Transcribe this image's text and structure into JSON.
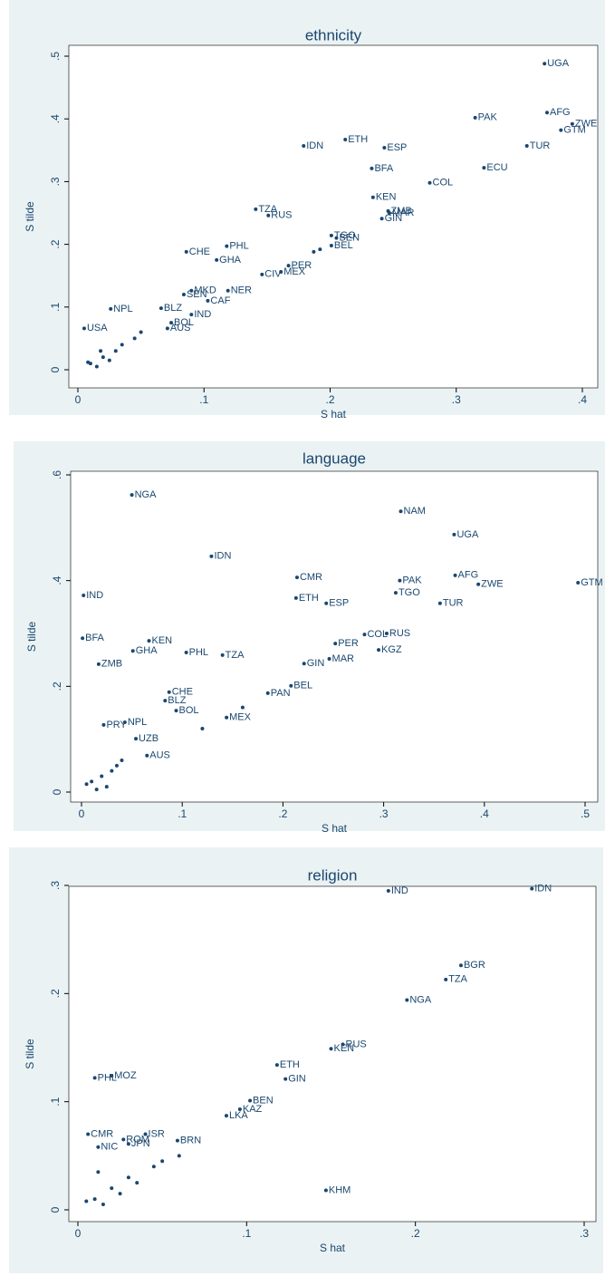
{
  "chart_data": [
    {
      "type": "scatter",
      "title": "ethnicity",
      "x_label": "S hat",
      "y_label": "S tilde",
      "color": "#1a476f",
      "xlim": [
        0,
        0.4
      ],
      "ylim": [
        0,
        0.5
      ],
      "xticks": [
        0,
        {
          "value": 0.1,
          "label": ".1"
        },
        {
          "value": 0.2,
          "label": ".2"
        },
        {
          "value": 0.3,
          "label": ".3"
        },
        {
          "value": 0.4,
          "label": ".4"
        }
      ],
      "yticks": [
        0,
        {
          "value": 0.1,
          "label": ".1"
        },
        {
          "value": 0.2,
          "label": ".2"
        },
        {
          "value": 0.3,
          "label": ".3"
        },
        {
          "value": 0.4,
          "label": ".4"
        },
        {
          "value": 0.5,
          "label": ".5"
        }
      ],
      "labels": [
        "UGA",
        "PAK",
        "AFG",
        "ZWE",
        "GTM",
        "TUR",
        "ECU",
        "IDN",
        "ETH",
        "ESP",
        "BFA",
        "COL",
        "KEN",
        "ZMB",
        "MAR",
        "GIN",
        "TZA",
        "RUS",
        "TGO",
        "BEN",
        "BEL",
        "CHE",
        "PHL",
        "GHA",
        "PER",
        "MEX",
        "CIV",
        "MKD",
        "NER",
        "SEN",
        "CAF",
        "BLZ",
        "IND",
        "NPL",
        "USA",
        "BOL",
        "AUS",
        null,
        null,
        null,
        null,
        null,
        null,
        null,
        null,
        null,
        null,
        null,
        null
      ],
      "x": [
        0.37,
        0.315,
        0.372,
        0.392,
        0.383,
        0.356,
        0.322,
        0.179,
        0.212,
        0.243,
        0.233,
        0.279,
        0.234,
        0.246,
        0.247,
        0.241,
        0.141,
        0.151,
        0.201,
        0.205,
        0.201,
        0.086,
        0.118,
        0.11,
        0.167,
        0.161,
        0.146,
        0.09,
        0.119,
        0.084,
        0.103,
        0.066,
        0.09,
        0.026,
        0.005,
        0.074,
        0.071,
        0.187,
        0.192,
        0.045,
        0.03,
        0.02,
        0.01,
        0.015,
        0.025,
        0.035,
        0.008,
        0.018,
        0.05
      ],
      "values": [
        0.488,
        0.402,
        0.41,
        0.392,
        0.382,
        0.357,
        0.322,
        0.357,
        0.367,
        0.354,
        0.321,
        0.298,
        0.275,
        0.253,
        0.25,
        0.241,
        0.256,
        0.246,
        0.214,
        0.21,
        0.198,
        0.188,
        0.197,
        0.175,
        0.166,
        0.156,
        0.152,
        0.126,
        0.126,
        0.12,
        0.11,
        0.098,
        0.088,
        0.097,
        0.066,
        0.075,
        0.066,
        0.188,
        0.192,
        0.05,
        0.03,
        0.02,
        0.01,
        0.005,
        0.015,
        0.04,
        0.012,
        0.03,
        0.06
      ]
    },
    {
      "type": "scatter",
      "title": "language",
      "x_label": "S hat",
      "y_label": "S tilde",
      "color": "#1a476f",
      "xlim": [
        0,
        0.5
      ],
      "ylim": [
        0,
        0.6
      ],
      "xticks": [
        0,
        {
          "value": 0.1,
          "label": ".1"
        },
        {
          "value": 0.2,
          "label": ".2"
        },
        {
          "value": 0.3,
          "label": ".3"
        },
        {
          "value": 0.4,
          "label": ".4"
        },
        {
          "value": 0.5,
          "label": ".5"
        }
      ],
      "yticks": [
        0,
        {
          "value": 0.2,
          "label": ".2"
        },
        {
          "value": 0.4,
          "label": ".4"
        },
        {
          "value": 0.6,
          "label": ".6"
        }
      ],
      "labels": [
        "NGA",
        "NAM",
        "UGA",
        "IDN",
        "CMR",
        "PAK",
        "AFG",
        "ZWE",
        "GTM",
        "TGO",
        "IND",
        "ETH",
        "ESP",
        "TUR",
        "BFA",
        "KEN",
        "RUS",
        "COL",
        "PER",
        "KGZ",
        "GHA",
        "PHL",
        "TZA",
        "ZMB",
        "MAR",
        "GIN",
        "PAN",
        "BEL",
        "CHE",
        "BLZ",
        "BOL",
        "PRY",
        "NPL",
        "MEX",
        "UZB",
        "AUS",
        null,
        null,
        null,
        null,
        null,
        null,
        null,
        null,
        null,
        null
      ],
      "x": [
        0.05,
        0.317,
        0.37,
        0.129,
        0.214,
        0.316,
        0.371,
        0.394,
        0.493,
        0.312,
        0.002,
        0.213,
        0.243,
        0.356,
        0.001,
        0.067,
        0.303,
        0.281,
        0.252,
        0.295,
        0.051,
        0.104,
        0.14,
        0.017,
        0.246,
        0.221,
        0.185,
        0.208,
        0.087,
        0.083,
        0.094,
        0.022,
        0.043,
        0.144,
        0.054,
        0.065,
        0.03,
        0.02,
        0.01,
        0.04,
        0.025,
        0.015,
        0.005,
        0.035,
        0.12,
        0.16
      ],
      "values": [
        0.562,
        0.531,
        0.487,
        0.446,
        0.406,
        0.4,
        0.41,
        0.393,
        0.396,
        0.377,
        0.372,
        0.367,
        0.357,
        0.357,
        0.291,
        0.286,
        0.3,
        0.298,
        0.281,
        0.269,
        0.267,
        0.264,
        0.259,
        0.242,
        0.252,
        0.243,
        0.187,
        0.201,
        0.189,
        0.173,
        0.154,
        0.127,
        0.132,
        0.141,
        0.101,
        0.069,
        0.04,
        0.03,
        0.02,
        0.06,
        0.01,
        0.005,
        0.015,
        0.05,
        0.12,
        0.16
      ]
    },
    {
      "type": "scatter",
      "title": "religion",
      "x_label": "S hat",
      "y_label": "S tilde",
      "color": "#1a476f",
      "xlim": [
        0,
        0.3
      ],
      "ylim": [
        0,
        0.3
      ],
      "xticks": [
        0,
        {
          "value": 0.1,
          "label": ".1"
        },
        {
          "value": 0.2,
          "label": ".2"
        },
        {
          "value": 0.3,
          "label": ".3"
        }
      ],
      "yticks": [
        0,
        {
          "value": 0.1,
          "label": ".1"
        },
        {
          "value": 0.2,
          "label": ".2"
        },
        {
          "value": 0.3,
          "label": ".3"
        }
      ],
      "labels": [
        "IDN",
        "IND",
        "BGR",
        "TZA",
        "NGA",
        "RUS",
        "KEN",
        "ETH",
        "GIN",
        "PHL",
        "MOZ",
        "BEN",
        "KAZ",
        "LKA",
        "ROM",
        "JPN",
        "ISR",
        "CMR",
        "NIC",
        "BRN",
        "KHM",
        null,
        null,
        null,
        null,
        null,
        null,
        null,
        null,
        null,
        null,
        null
      ],
      "x": [
        0.269,
        0.184,
        0.227,
        0.218,
        0.195,
        0.157,
        0.15,
        0.118,
        0.123,
        0.01,
        0.02,
        0.102,
        0.096,
        0.088,
        0.027,
        0.03,
        0.04,
        0.006,
        0.012,
        0.059,
        0.147,
        0.01,
        0.02,
        0.015,
        0.025,
        0.005,
        0.03,
        0.045,
        0.06,
        0.05,
        0.035,
        0.012
      ],
      "values": [
        0.297,
        0.295,
        0.226,
        0.213,
        0.194,
        0.153,
        0.149,
        0.134,
        0.121,
        0.122,
        0.124,
        0.101,
        0.093,
        0.087,
        0.065,
        0.061,
        0.07,
        0.07,
        0.058,
        0.064,
        0.018,
        0.01,
        0.02,
        0.005,
        0.015,
        0.008,
        0.03,
        0.04,
        0.05,
        0.045,
        0.025,
        0.035
      ]
    }
  ]
}
